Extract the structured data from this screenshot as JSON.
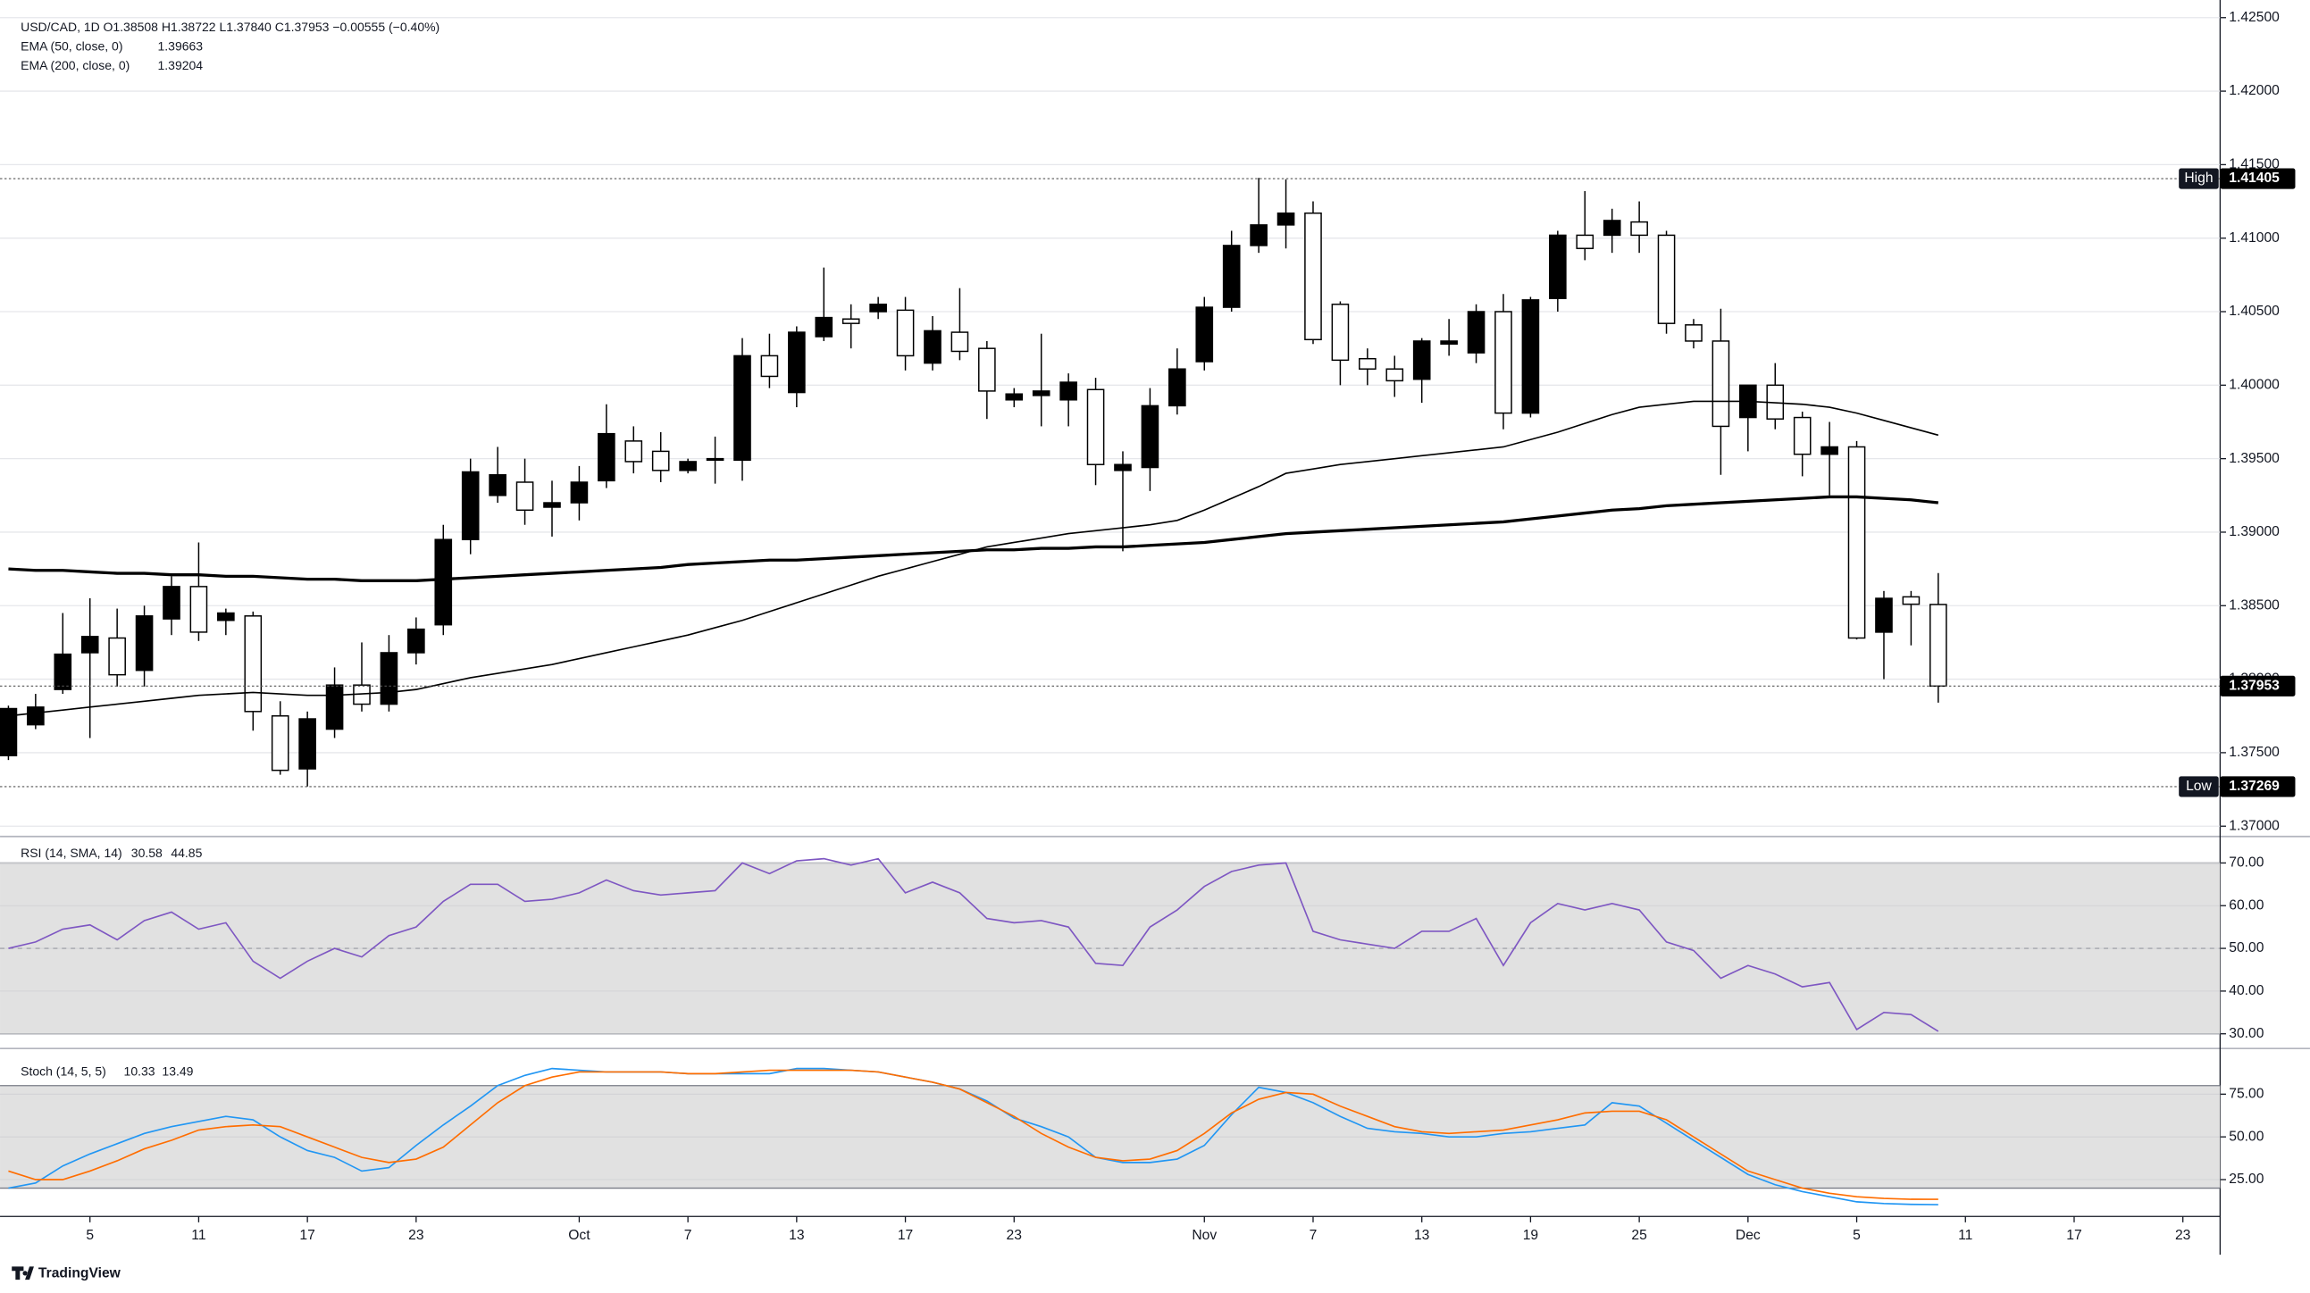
{
  "chart_data": [
    {
      "type": "candlestick",
      "title": "USD/CAD, 1D",
      "ohlc_text": "O1.38508  H1.38722  L1.37840  C1.37953  −0.00555 (−0.40%)",
      "up_color": "#000000",
      "down_color": "#ffffff",
      "grid": true,
      "open": [
        1.3748,
        1.3769,
        1.3793,
        1.3818,
        1.3828,
        1.3806,
        1.3841,
        1.3863,
        1.384,
        1.3843,
        1.3775,
        1.3739,
        1.3766,
        1.3796,
        1.3783,
        1.3818,
        1.3837,
        1.3895,
        1.3925,
        1.3934,
        1.3917,
        1.392,
        1.3935,
        1.3962,
        1.3955,
        1.3942,
        1.3949,
        1.3949,
        1.402,
        1.3995,
        1.4033,
        1.4045,
        1.405,
        1.4051,
        1.4015,
        1.4036,
        1.4025,
        1.399,
        1.3993,
        1.399,
        1.3997,
        1.3942,
        1.3944,
        1.3986,
        1.4016,
        1.4053,
        1.4095,
        1.4109,
        1.4117,
        1.4055,
        1.4018,
        1.4011,
        1.4004,
        1.4028,
        1.4022,
        1.405,
        1.3981,
        1.4059,
        1.4102,
        1.4102,
        1.4111,
        1.4102,
        1.4041,
        1.403,
        1.3978,
        1.4,
        1.3978,
        1.3953,
        1.3958,
        1.3832,
        1.3856,
        1.38508
      ],
      "high": [
        1.3782,
        1.379,
        1.3845,
        1.3855,
        1.3848,
        1.385,
        1.387,
        1.3893,
        1.3848,
        1.3846,
        1.3785,
        1.3778,
        1.3808,
        1.3825,
        1.383,
        1.3842,
        1.3905,
        1.395,
        1.3958,
        1.395,
        1.3935,
        1.3945,
        1.3987,
        1.3972,
        1.3968,
        1.395,
        1.3965,
        1.4032,
        1.4035,
        1.404,
        1.408,
        1.4055,
        1.406,
        1.406,
        1.4047,
        1.4066,
        1.403,
        1.3998,
        1.4035,
        1.4008,
        1.4005,
        1.3955,
        1.3998,
        1.4025,
        1.406,
        1.4105,
        1.4141,
        1.414,
        1.4125,
        1.4057,
        1.4025,
        1.402,
        1.4032,
        1.4045,
        1.4055,
        1.4062,
        1.406,
        1.4105,
        1.4132,
        1.412,
        1.4125,
        1.4105,
        1.4045,
        1.4052,
        1.4,
        1.4015,
        1.3982,
        1.3975,
        1.3962,
        1.386,
        1.386,
        1.38722
      ],
      "low": [
        1.3745,
        1.3766,
        1.379,
        1.376,
        1.3795,
        1.3795,
        1.383,
        1.3826,
        1.383,
        1.3765,
        1.3735,
        1.3727,
        1.376,
        1.3778,
        1.3778,
        1.381,
        1.383,
        1.3885,
        1.392,
        1.3905,
        1.3897,
        1.3908,
        1.393,
        1.394,
        1.3934,
        1.394,
        1.3933,
        1.3935,
        1.3998,
        1.3985,
        1.403,
        1.4025,
        1.4045,
        1.401,
        1.401,
        1.4017,
        1.3977,
        1.3985,
        1.3972,
        1.3972,
        1.3932,
        1.3887,
        1.3928,
        1.398,
        1.401,
        1.405,
        1.409,
        1.4093,
        1.4028,
        1.4,
        1.4,
        1.3992,
        1.3988,
        1.402,
        1.4015,
        1.397,
        1.3978,
        1.405,
        1.4085,
        1.409,
        1.409,
        1.4035,
        1.4025,
        1.3939,
        1.3955,
        1.397,
        1.3938,
        1.3925,
        1.3827,
        1.38,
        1.3823,
        1.3784
      ],
      "close": [
        1.378,
        1.3781,
        1.3817,
        1.3829,
        1.3803,
        1.3843,
        1.3863,
        1.3832,
        1.3845,
        1.3778,
        1.3738,
        1.3773,
        1.3796,
        1.3783,
        1.3818,
        1.3834,
        1.3895,
        1.3941,
        1.3939,
        1.3915,
        1.392,
        1.3934,
        1.3967,
        1.3948,
        1.3942,
        1.3948,
        1.395,
        1.402,
        1.4006,
        1.4036,
        1.4046,
        1.4042,
        1.4055,
        1.402,
        1.4037,
        1.4023,
        1.3996,
        1.3994,
        1.3996,
        1.4002,
        1.3946,
        1.3946,
        1.3986,
        1.4011,
        1.4053,
        1.4095,
        1.4109,
        1.4117,
        1.4031,
        1.4017,
        1.4011,
        1.4003,
        1.403,
        1.403,
        1.405,
        1.3981,
        1.4058,
        1.4102,
        1.4093,
        1.4112,
        1.4102,
        1.4042,
        1.403,
        1.3972,
        1.4,
        1.3977,
        1.3953,
        1.3958,
        1.3828,
        1.3855,
        1.3851,
        1.37953
      ],
      "series": [
        {
          "name": "EMA (50, close, 0)",
          "value_label": "1.39663",
          "color": "#000000",
          "width": 1,
          "values": [
            1.3775,
            1.3777,
            1.3779,
            1.3781,
            1.3783,
            1.3785,
            1.3787,
            1.3789,
            1.379,
            1.3791,
            1.379,
            1.3789,
            1.3789,
            1.379,
            1.3791,
            1.3793,
            1.3797,
            1.3801,
            1.3804,
            1.3807,
            1.381,
            1.3814,
            1.3818,
            1.3822,
            1.3826,
            1.383,
            1.3835,
            1.384,
            1.3846,
            1.3852,
            1.3858,
            1.3864,
            1.387,
            1.3875,
            1.388,
            1.3885,
            1.389,
            1.3893,
            1.3896,
            1.3899,
            1.3901,
            1.3903,
            1.3905,
            1.3908,
            1.3915,
            1.3923,
            1.3931,
            1.394,
            1.3943,
            1.3946,
            1.3948,
            1.395,
            1.3952,
            1.3954,
            1.3956,
            1.3958,
            1.3963,
            1.3968,
            1.3974,
            1.398,
            1.3985,
            1.3987,
            1.3989,
            1.3989,
            1.3989,
            1.3988,
            1.3987,
            1.3985,
            1.3981,
            1.3976,
            1.3971,
            1.3966
          ]
        },
        {
          "name": "EMA (200, close, 0)",
          "value_label": "1.39204",
          "color": "#000000",
          "width": 2,
          "values": [
            1.3875,
            1.3874,
            1.3874,
            1.3873,
            1.3872,
            1.3872,
            1.3871,
            1.3871,
            1.387,
            1.387,
            1.3869,
            1.3868,
            1.3868,
            1.3867,
            1.3867,
            1.3867,
            1.3868,
            1.3869,
            1.387,
            1.3871,
            1.3872,
            1.3873,
            1.3874,
            1.3875,
            1.3876,
            1.3878,
            1.3879,
            1.388,
            1.3881,
            1.3881,
            1.3882,
            1.3883,
            1.3884,
            1.3885,
            1.3886,
            1.3887,
            1.3888,
            1.3888,
            1.3889,
            1.3889,
            1.389,
            1.389,
            1.3891,
            1.3892,
            1.3893,
            1.3895,
            1.3897,
            1.3899,
            1.39,
            1.3901,
            1.3902,
            1.3903,
            1.3904,
            1.3905,
            1.3906,
            1.3907,
            1.3909,
            1.3911,
            1.3913,
            1.3915,
            1.3916,
            1.3918,
            1.3919,
            1.392,
            1.3921,
            1.3922,
            1.3923,
            1.3924,
            1.3924,
            1.3923,
            1.3922,
            1.392
          ]
        }
      ],
      "markers": [
        {
          "label": "High",
          "value": 1.41405,
          "value_label": "1.41405"
        },
        {
          "label": "Low",
          "value": 1.37269,
          "value_label": "1.37269"
        },
        {
          "value": 1.37953,
          "value_label": "1.37953"
        }
      ],
      "xlim": [
        -0.309,
        81.37
      ],
      "xticks": [
        {
          "value": 3,
          "label": "5"
        },
        {
          "value": 7,
          "label": "11"
        },
        {
          "value": 11,
          "label": "17"
        },
        {
          "value": 15,
          "label": "23"
        },
        {
          "value": 21,
          "label": "Oct"
        },
        {
          "value": 25,
          "label": "7"
        },
        {
          "value": 29,
          "label": "13"
        },
        {
          "value": 33,
          "label": "17"
        },
        {
          "value": 37,
          "label": "23"
        },
        {
          "value": 44,
          "label": "Nov"
        },
        {
          "value": 48,
          "label": "7"
        },
        {
          "value": 52,
          "label": "13"
        },
        {
          "value": 56,
          "label": "19"
        },
        {
          "value": 60,
          "label": "25"
        },
        {
          "value": 64,
          "label": "Dec"
        },
        {
          "value": 68,
          "label": "5"
        },
        {
          "value": 72,
          "label": "11"
        },
        {
          "value": 76,
          "label": "17"
        },
        {
          "value": 80,
          "label": "23"
        }
      ],
      "ylim": [
        1.3693,
        1.4262
      ],
      "yticks": [
        {
          "value": 1.37,
          "label": "1.37000"
        },
        {
          "value": 1.375,
          "label": "1.37500"
        },
        {
          "value": 1.38,
          "label": "1.38000"
        },
        {
          "value": 1.385,
          "label": "1.38500"
        },
        {
          "value": 1.39,
          "label": "1.39000"
        },
        {
          "value": 1.395,
          "label": "1.39500"
        },
        {
          "value": 1.4,
          "label": "1.40000"
        },
        {
          "value": 1.405,
          "label": "1.40500"
        },
        {
          "value": 1.41,
          "label": "1.41000"
        },
        {
          "value": 1.415,
          "label": "1.41500"
        },
        {
          "value": 1.42,
          "label": "1.42000"
        },
        {
          "value": 1.425,
          "label": "1.42500"
        }
      ]
    },
    {
      "type": "line",
      "title": "RSI (14, SMA, 14)",
      "band": [
        30,
        70
      ],
      "midline": 50,
      "legend_values": [
        {
          "text": "30.58",
          "color": "#7e57c2"
        },
        {
          "text": "44.85",
          "color": "#2196f3"
        }
      ],
      "series": [
        {
          "color": "#7e57c2",
          "values": [
            50,
            51.5,
            54.5,
            55.5,
            52,
            56.5,
            58.5,
            54.5,
            56,
            47,
            43,
            47,
            50,
            48,
            53,
            55,
            61,
            65,
            65,
            61,
            61.5,
            63,
            66,
            63.5,
            62.5,
            63,
            63.5,
            70,
            67.5,
            70.5,
            71,
            69.5,
            71,
            63,
            65.5,
            63,
            57,
            56,
            56.5,
            55,
            46.5,
            46,
            55,
            59,
            64.5,
            68,
            69.5,
            70,
            54,
            52,
            51,
            50,
            54,
            54,
            57,
            46,
            56,
            60.5,
            59,
            60.5,
            59,
            51.5,
            49.5,
            43,
            46,
            44,
            41,
            42,
            31,
            35,
            34.5,
            30.58
          ]
        }
      ],
      "ylim": [
        26.55,
        76.2
      ],
      "yticks": [
        {
          "value": 30,
          "label": "30.00"
        },
        {
          "value": 40,
          "label": "40.00"
        },
        {
          "value": 50,
          "label": "50.00"
        },
        {
          "value": 60,
          "label": "60.00"
        },
        {
          "value": 70,
          "label": "70.00"
        }
      ]
    },
    {
      "type": "line",
      "title": "Stoch (14, 5, 5)",
      "band": [
        20,
        80
      ],
      "series": [
        {
          "value_label": "10.33",
          "color": "#2196f3",
          "values": [
            20,
            23,
            33,
            40,
            46,
            52,
            56,
            59,
            62,
            60,
            50,
            42,
            38,
            30,
            32,
            45,
            57,
            68,
            80,
            86,
            90,
            89,
            88,
            88,
            88,
            87,
            87,
            87,
            87,
            90,
            90,
            89,
            88,
            85,
            82,
            78,
            71,
            61,
            56,
            50,
            38,
            35,
            35,
            37,
            45,
            63,
            79,
            76,
            70,
            62,
            55,
            53,
            52,
            50,
            50,
            52,
            53,
            55,
            57,
            70,
            68,
            58,
            48,
            38,
            28,
            22,
            18,
            15,
            12,
            11,
            10.5,
            10.33
          ]
        },
        {
          "value_label": "13.49",
          "color": "#ff6d00",
          "values": [
            30,
            25,
            25,
            30,
            36,
            43,
            48,
            54,
            56,
            57,
            56,
            50,
            44,
            38,
            35,
            37,
            44,
            57,
            70,
            80,
            85,
            88,
            88,
            88,
            88,
            87,
            87,
            88,
            89,
            89,
            89,
            89,
            88,
            85,
            82,
            78,
            70,
            62,
            52,
            44,
            38,
            36,
            37,
            42,
            52,
            64,
            72,
            76,
            75,
            68,
            62,
            56,
            53,
            52,
            53,
            54,
            57,
            60,
            64,
            65,
            65,
            60,
            50,
            40,
            30,
            25,
            20,
            17,
            15,
            14,
            13.5,
            13.49
          ]
        }
      ],
      "ylim": [
        3.45,
        101.7
      ],
      "yticks": [
        {
          "value": 25,
          "label": "25.00"
        },
        {
          "value": 50,
          "label": "50.00"
        },
        {
          "value": 75,
          "label": "75.00"
        }
      ]
    }
  ],
  "footer": {
    "brand": "TradingView"
  }
}
